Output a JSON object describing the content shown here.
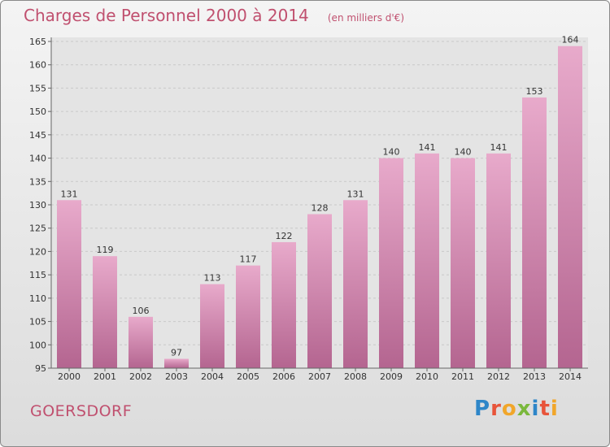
{
  "header": {
    "title": "Charges de Personnel 2000 à 2014",
    "subtitle": "(en milliers d'€)"
  },
  "footer": {
    "commune": "GOERSDORF",
    "logo_text": "Proxiti"
  },
  "colors": {
    "bar_top": "#e8aacb",
    "bar_bottom": "#b46590",
    "title": "#c0506f"
  },
  "chart_data": {
    "type": "bar",
    "title": "Charges de Personnel 2000 à 2014",
    "subtitle": "(en milliers d'€)",
    "xlabel": "",
    "ylabel": "",
    "categories": [
      "2000",
      "2001",
      "2002",
      "2003",
      "2004",
      "2005",
      "2006",
      "2007",
      "2008",
      "2009",
      "2010",
      "2011",
      "2012",
      "2013",
      "2014"
    ],
    "values": [
      131,
      119,
      106,
      97,
      113,
      117,
      122,
      128,
      131,
      140,
      141,
      140,
      141,
      153,
      164
    ],
    "ylim": [
      95,
      165
    ],
    "yticks": [
      95,
      100,
      105,
      110,
      115,
      120,
      125,
      130,
      135,
      140,
      145,
      150,
      155,
      160,
      165
    ],
    "grid": true
  }
}
